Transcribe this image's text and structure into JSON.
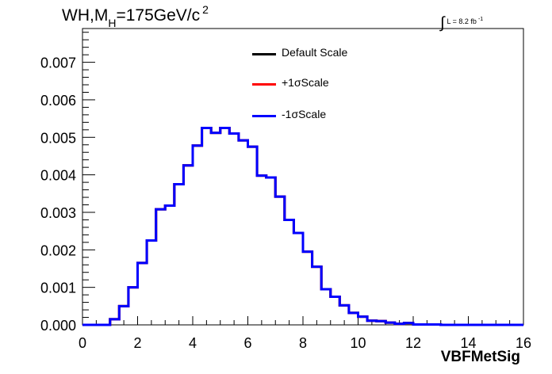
{
  "title": {
    "prefix": "WH,M",
    "sub": "H",
    "main": "=175GeV/c",
    "sup": "2"
  },
  "lumi": {
    "text": "L = 8.2 fb",
    "sup": "-1"
  },
  "legend": [
    {
      "label": "Default Scale",
      "color": "#000000"
    },
    {
      "label": "+1σScale",
      "color": "#ff0000"
    },
    {
      "label": "-1σScale",
      "color": "#0000ff"
    }
  ],
  "chart_data": {
    "type": "line",
    "step": true,
    "xlabel": "VBFMetSig",
    "ylabel": "",
    "xlim": [
      0,
      16
    ],
    "ylim": [
      0,
      0.0079
    ],
    "xticks": [
      "0",
      "2",
      "4",
      "6",
      "8",
      "10",
      "12",
      "14",
      "16"
    ],
    "yticks": [
      "0.000",
      "0.001",
      "0.002",
      "0.003",
      "0.004",
      "0.005",
      "0.006",
      "0.007"
    ],
    "bin_edges": [
      0,
      0.333,
      0.667,
      1.0,
      1.333,
      1.667,
      2.0,
      2.333,
      2.667,
      3.0,
      3.333,
      3.667,
      4.0,
      4.333,
      4.667,
      5.0,
      5.333,
      5.667,
      6.0,
      6.333,
      6.667,
      7.0,
      7.333,
      7.667,
      8.0,
      8.333,
      8.667,
      9.0,
      9.333,
      9.667,
      10.0,
      10.333,
      10.667,
      11.0,
      11.333,
      11.667,
      12.0,
      12.333,
      12.667,
      13.0,
      13.333,
      13.667,
      14.0,
      14.333,
      14.667,
      15.0,
      15.333,
      15.667,
      16.0
    ],
    "series": [
      {
        "name": "Default Scale",
        "color": "#000000",
        "values": [
          0,
          0,
          0,
          0.00015,
          0.0005,
          0.001,
          0.00165,
          0.00225,
          0.00308,
          0.00318,
          0.00375,
          0.00425,
          0.00478,
          0.00525,
          0.00512,
          0.00525,
          0.0051,
          0.00492,
          0.00475,
          0.00398,
          0.00393,
          0.00342,
          0.0028,
          0.00245,
          0.00195,
          0.00155,
          0.00095,
          0.00075,
          0.00052,
          0.00032,
          0.00022,
          0.00011,
          0.0001,
          6e-05,
          3e-05,
          5e-05,
          1e-05,
          1e-05,
          1e-05,
          0,
          0,
          0,
          0,
          0,
          0,
          0,
          0,
          0
        ]
      },
      {
        "name": "+1σScale",
        "color": "#ff0000",
        "values": [
          0,
          0,
          0,
          0.00015,
          0.0005,
          0.001,
          0.00165,
          0.00225,
          0.00308,
          0.00318,
          0.00375,
          0.00425,
          0.00478,
          0.00525,
          0.00512,
          0.00525,
          0.0051,
          0.00492,
          0.00475,
          0.00398,
          0.00393,
          0.00342,
          0.0028,
          0.00245,
          0.00195,
          0.00155,
          0.00095,
          0.00075,
          0.00052,
          0.00032,
          0.00022,
          0.00011,
          0.0001,
          6e-05,
          3e-05,
          5e-05,
          1e-05,
          1e-05,
          1e-05,
          0,
          0,
          0,
          0,
          0,
          0,
          0,
          0,
          0
        ]
      },
      {
        "name": "-1σScale",
        "color": "#0000ff",
        "values": [
          0,
          0,
          0,
          0.00015,
          0.0005,
          0.001,
          0.00165,
          0.00225,
          0.00308,
          0.00318,
          0.00375,
          0.00425,
          0.00478,
          0.00525,
          0.00512,
          0.00525,
          0.0051,
          0.00492,
          0.00475,
          0.00398,
          0.00393,
          0.00342,
          0.0028,
          0.00245,
          0.00195,
          0.00155,
          0.00095,
          0.00075,
          0.00052,
          0.00032,
          0.00022,
          0.00011,
          0.0001,
          6e-05,
          3e-05,
          5e-05,
          1e-05,
          1e-05,
          1e-05,
          0,
          0,
          0,
          0,
          0,
          0,
          0,
          0,
          0
        ]
      }
    ]
  }
}
